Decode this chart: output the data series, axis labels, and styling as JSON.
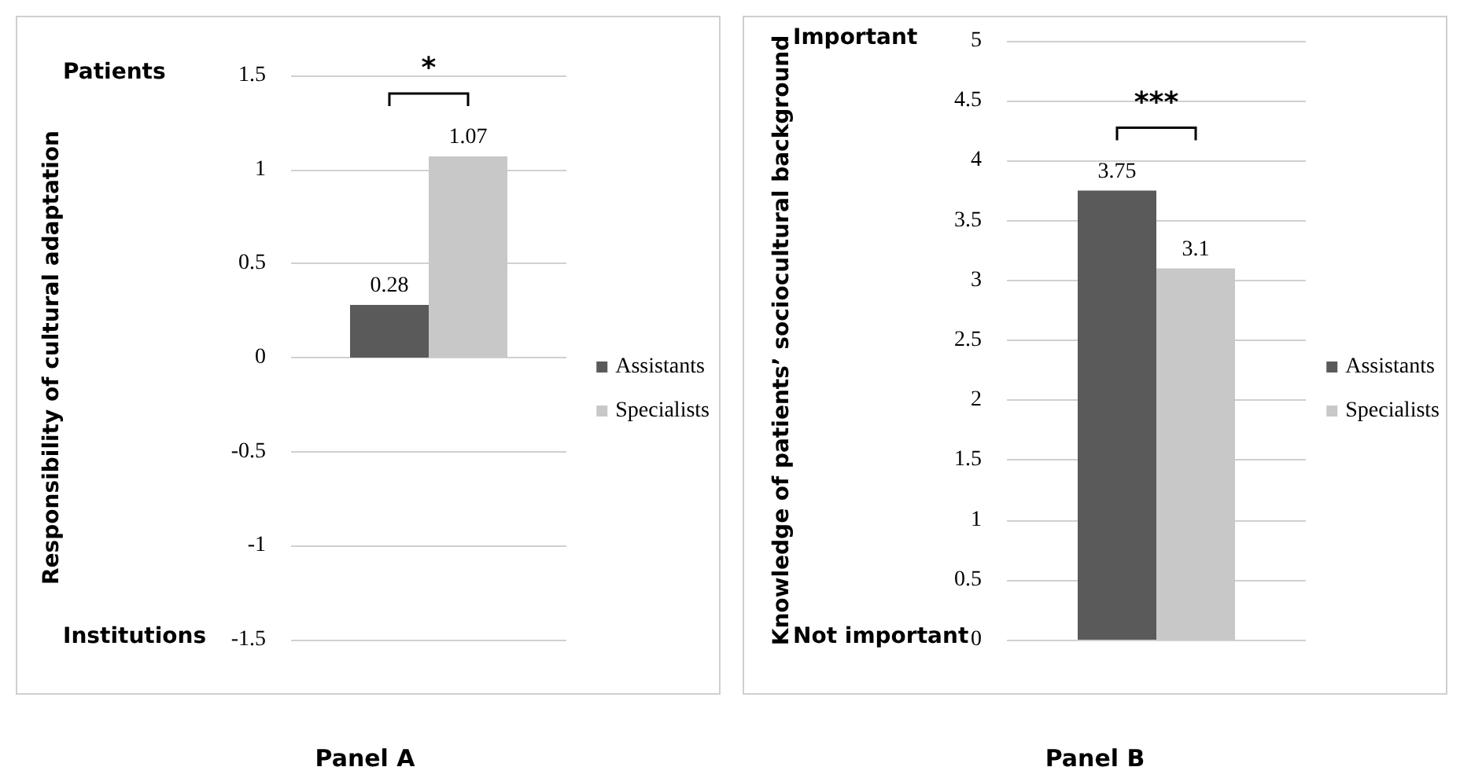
{
  "chart_data": [
    {
      "type": "bar",
      "title": "Panel A",
      "ylabel": "Responsibility of cultural adaptation",
      "categories": [
        null
      ],
      "series": [
        {
          "name": "Assistants",
          "color": "#5a5a5a",
          "values": [
            0.28
          ]
        },
        {
          "name": "Specialists",
          "color": "#c8c8c8",
          "values": [
            1.07
          ]
        }
      ],
      "ylim": [
        -1.5,
        1.5
      ],
      "yticks": [
        -1.5,
        -1,
        -0.5,
        0,
        0.5,
        1,
        1.5
      ],
      "grid": "y",
      "legend": "right",
      "data_labels": true,
      "annotations": [
        "Patients",
        "Institutions",
        "*"
      ]
    },
    {
      "type": "bar",
      "title": "Panel B",
      "ylabel": "Knowledge of patients’ sociocultural background",
      "categories": [
        null
      ],
      "series": [
        {
          "name": "Assistants",
          "color": "#5a5a5a",
          "values": [
            3.75
          ]
        },
        {
          "name": "Specialists",
          "color": "#c8c8c8",
          "values": [
            3.1
          ]
        }
      ],
      "ylim": [
        0,
        5
      ],
      "yticks": [
        0,
        0.5,
        1,
        1.5,
        2,
        2.5,
        3,
        3.5,
        4,
        4.5,
        5
      ],
      "grid": "y",
      "legend": "right",
      "data_labels": true,
      "annotations": [
        "Important",
        "Not important",
        "***"
      ]
    }
  ]
}
